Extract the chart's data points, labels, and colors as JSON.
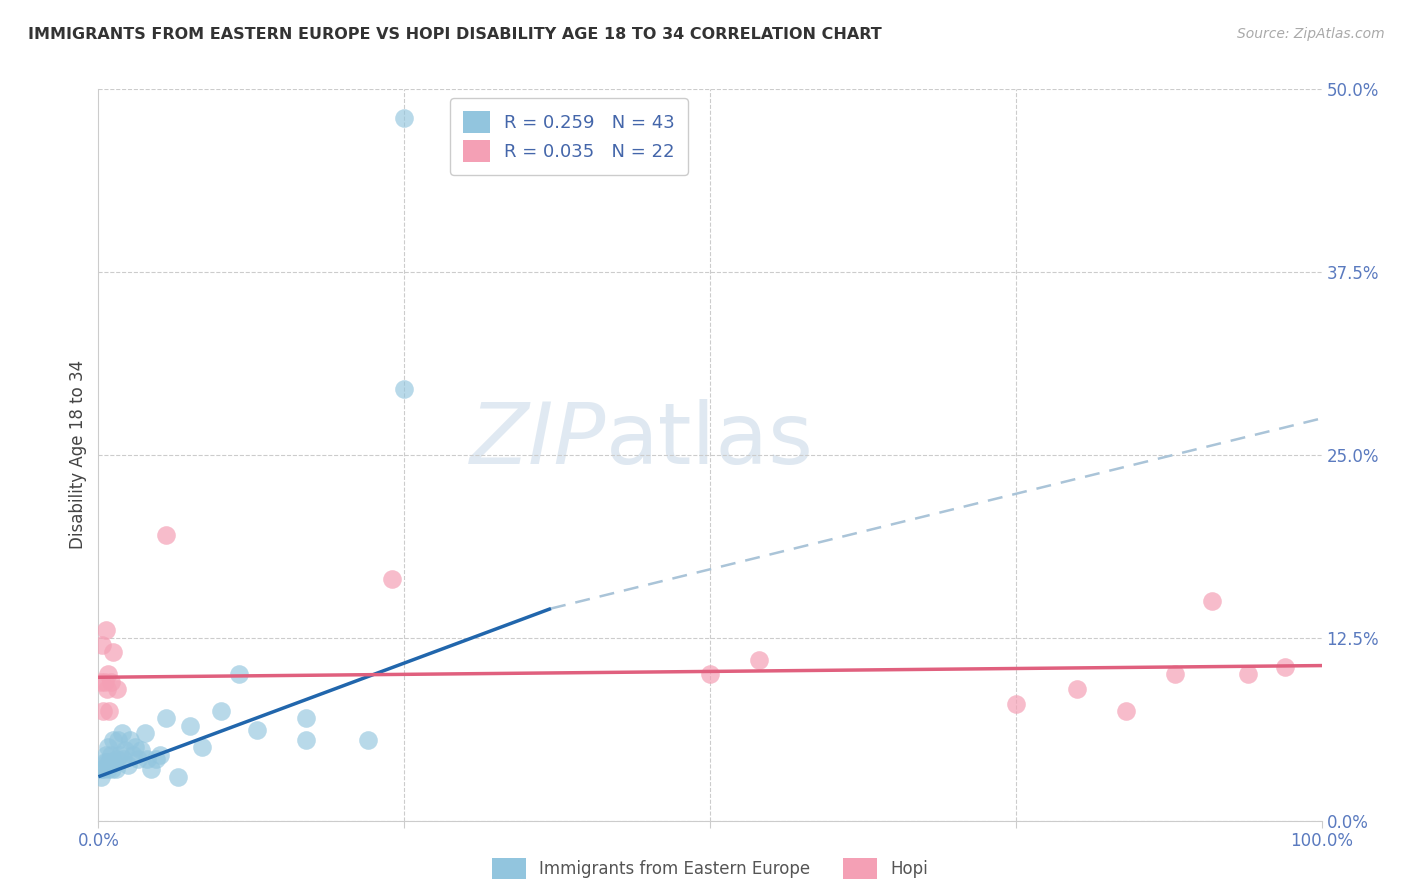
{
  "title": "IMMIGRANTS FROM EASTERN EUROPE VS HOPI DISABILITY AGE 18 TO 34 CORRELATION CHART",
  "source": "Source: ZipAtlas.com",
  "ylabel": "Disability Age 18 to 34",
  "xlim": [
    0,
    1.0
  ],
  "ylim": [
    0,
    0.5
  ],
  "ytick_values": [
    0.0,
    0.125,
    0.25,
    0.375,
    0.5
  ],
  "ytick_labels": [
    "0.0%",
    "12.5%",
    "25.0%",
    "37.5%",
    "50.0%"
  ],
  "legend_r1": "R = 0.259",
  "legend_n1": "N = 43",
  "legend_r2": "R = 0.035",
  "legend_n2": "N = 22",
  "color_blue": "#92c5de",
  "color_pink": "#f4a0b5",
  "color_line_blue": "#2166ac",
  "color_line_pink": "#e0607e",
  "color_line_dashed": "#aac4d8",
  "watermark_zip": "ZIP",
  "watermark_atlas": "atlas",
  "blue_scatter_x": [
    0.002,
    0.003,
    0.004,
    0.005,
    0.006,
    0.007,
    0.008,
    0.008,
    0.009,
    0.01,
    0.011,
    0.012,
    0.013,
    0.014,
    0.015,
    0.016,
    0.018,
    0.019,
    0.02,
    0.022,
    0.024,
    0.026,
    0.028,
    0.03,
    0.032,
    0.035,
    0.038,
    0.04,
    0.043,
    0.047,
    0.05,
    0.055,
    0.065,
    0.075,
    0.085,
    0.1,
    0.115,
    0.13,
    0.17,
    0.22,
    0.25,
    0.17,
    0.25
  ],
  "blue_scatter_y": [
    0.03,
    0.035,
    0.035,
    0.04,
    0.045,
    0.04,
    0.035,
    0.05,
    0.04,
    0.045,
    0.035,
    0.055,
    0.04,
    0.035,
    0.042,
    0.055,
    0.045,
    0.06,
    0.042,
    0.048,
    0.038,
    0.055,
    0.045,
    0.05,
    0.042,
    0.048,
    0.06,
    0.042,
    0.035,
    0.042,
    0.045,
    0.07,
    0.03,
    0.065,
    0.05,
    0.075,
    0.1,
    0.062,
    0.07,
    0.055,
    0.295,
    0.055,
    0.48
  ],
  "pink_scatter_x": [
    0.002,
    0.003,
    0.004,
    0.005,
    0.006,
    0.007,
    0.008,
    0.009,
    0.01,
    0.012,
    0.015,
    0.055,
    0.24,
    0.5,
    0.54,
    0.75,
    0.8,
    0.84,
    0.88,
    0.91,
    0.94,
    0.97
  ],
  "pink_scatter_y": [
    0.095,
    0.12,
    0.075,
    0.095,
    0.13,
    0.09,
    0.1,
    0.075,
    0.095,
    0.115,
    0.09,
    0.195,
    0.165,
    0.1,
    0.11,
    0.08,
    0.09,
    0.075,
    0.1,
    0.15,
    0.1,
    0.105
  ],
  "blue_line_x": [
    0.0,
    0.37
  ],
  "blue_line_y": [
    0.03,
    0.145
  ],
  "dashed_line_x": [
    0.37,
    1.0
  ],
  "dashed_line_y": [
    0.145,
    0.275
  ],
  "pink_line_x": [
    0.0,
    1.0
  ],
  "pink_line_y": [
    0.098,
    0.106
  ]
}
